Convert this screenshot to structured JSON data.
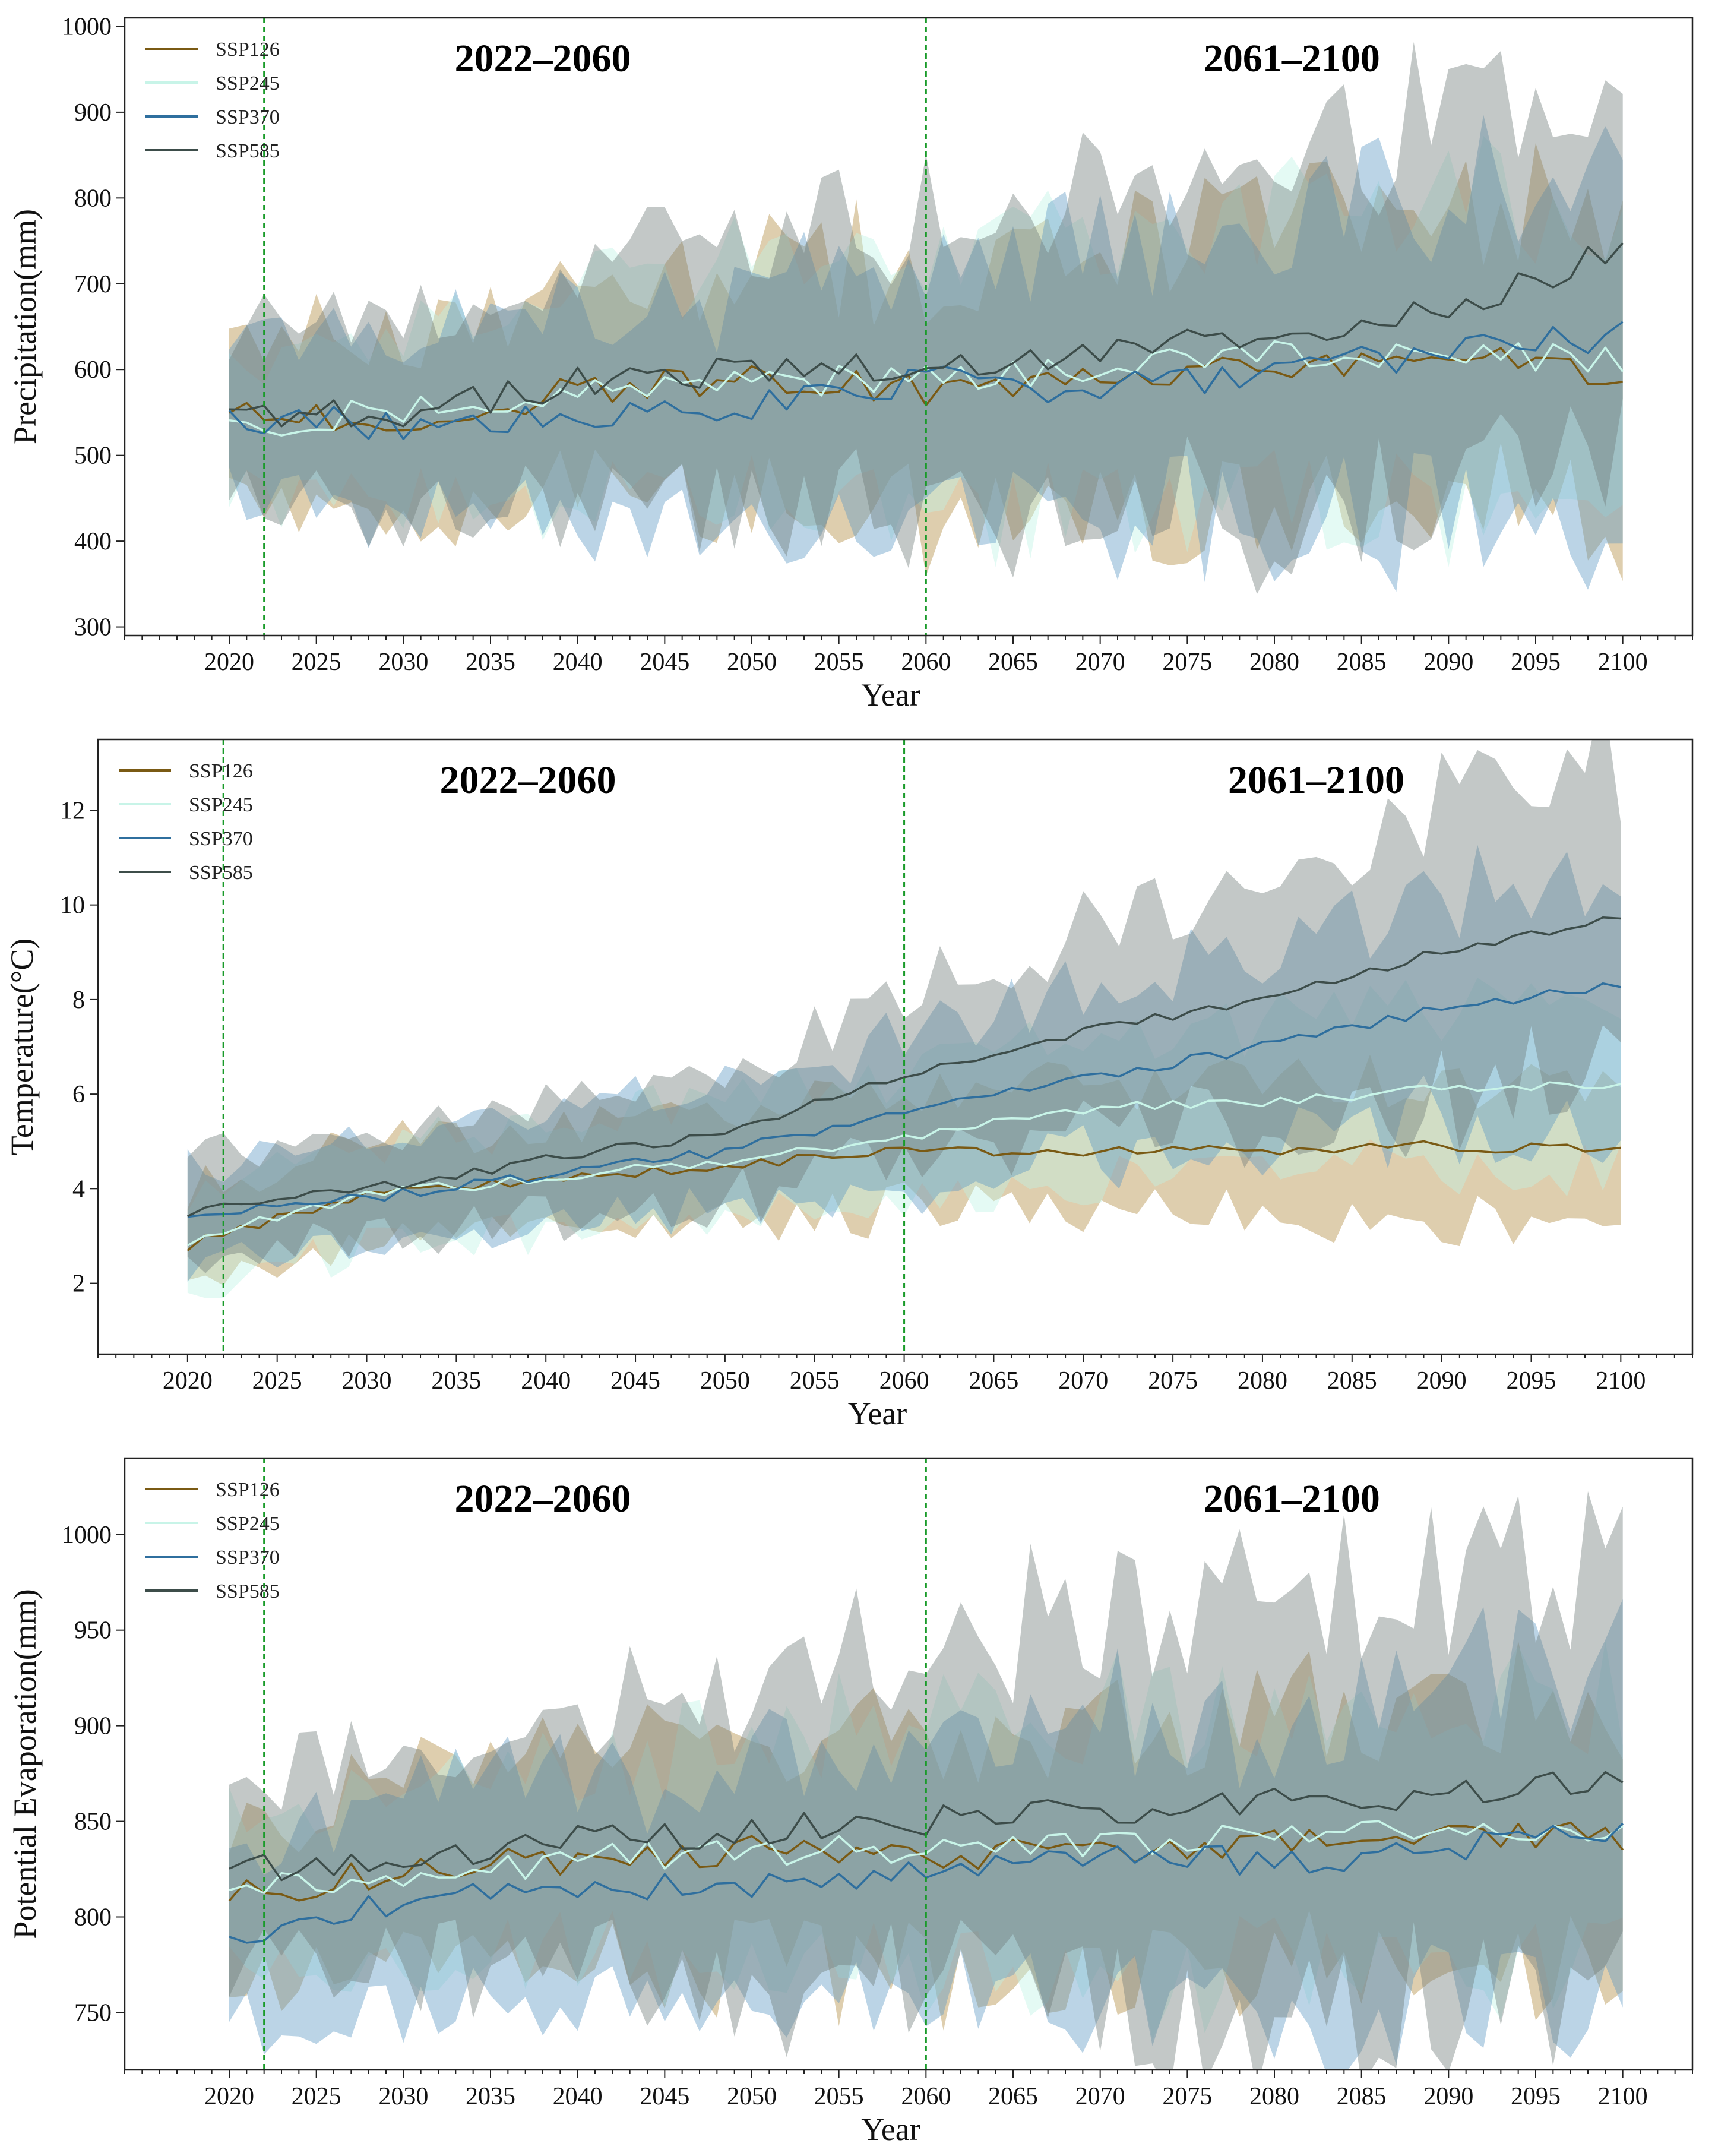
{
  "figure_title": "",
  "series_colors": {
    "SSP126": "#7a5a14",
    "SSP245": "#c8f4e8",
    "SSP370": "#2f6f9e",
    "SSP585": "#3d4d4a"
  },
  "band_colors": {
    "SSP126": "#b08a3e",
    "SSP245": "#bff2e4",
    "SSP370": "#5e98c4",
    "SSP585": "#6f7d7a"
  },
  "divider_color": "#1a9b2a",
  "chart_data": [
    {
      "type": "line",
      "title": "",
      "xlabel": "Year",
      "ylabel": "Precipitation(mm)",
      "xlim": [
        2014,
        2104
      ],
      "ylim": [
        290,
        1010
      ],
      "xticks": [
        2020,
        2025,
        2030,
        2035,
        2040,
        2045,
        2050,
        2055,
        2060,
        2065,
        2070,
        2075,
        2080,
        2085,
        2090,
        2095,
        2100
      ],
      "yticks": [
        300,
        400,
        500,
        600,
        700,
        800,
        900,
        1000
      ],
      "dividers": [
        2022,
        2060
      ],
      "period_labels": [
        {
          "text": "2022–2060",
          "year": 2038
        },
        {
          "text": "2061–2100",
          "year": 2081
        }
      ],
      "legend": [
        "SSP126",
        "SSP245",
        "SSP370",
        "SSP585"
      ],
      "legend_position": "upper-left",
      "x": [
        2020,
        2030,
        2040,
        2050,
        2060,
        2070,
        2080,
        2090,
        2100
      ],
      "series": [
        {
          "name": "SSP126",
          "values": [
            545,
            545,
            575,
            590,
            575,
            590,
            605,
            615,
            590
          ],
          "band": [
            85,
            95,
            115,
            130,
            140,
            155,
            160,
            170,
            170
          ]
        },
        {
          "name": "SSP245",
          "values": [
            535,
            555,
            570,
            585,
            590,
            600,
            615,
            620,
            610
          ],
          "band": [
            80,
            90,
            110,
            125,
            140,
            150,
            160,
            165,
            170
          ]
        },
        {
          "name": "SSP370",
          "values": [
            545,
            535,
            550,
            555,
            590,
            575,
            600,
            620,
            640
          ],
          "band": [
            90,
            100,
            115,
            130,
            145,
            160,
            170,
            180,
            190
          ]
        },
        {
          "name": "SSP585",
          "values": [
            545,
            550,
            585,
            600,
            600,
            620,
            640,
            670,
            740
          ],
          "band": [
            95,
            110,
            130,
            150,
            170,
            190,
            200,
            210,
            200
          ]
        }
      ]
    },
    {
      "type": "line",
      "title": "",
      "xlabel": "Year",
      "ylabel": "Temperature(°C)",
      "xlim": [
        2015,
        2104
      ],
      "ylim": [
        0.5,
        13.5
      ],
      "xticks": [
        2020,
        2025,
        2030,
        2035,
        2040,
        2045,
        2050,
        2055,
        2060,
        2065,
        2070,
        2075,
        2080,
        2085,
        2090,
        2095,
        2100
      ],
      "yticks": [
        2,
        4,
        6,
        8,
        10,
        12
      ],
      "dividers": [
        2022,
        2060
      ],
      "period_labels": [
        {
          "text": "2022–2060",
          "year": 2039
        },
        {
          "text": "2061–2100",
          "year": 2083
        }
      ],
      "legend": [
        "SSP126",
        "SSP245",
        "SSP370",
        "SSP585"
      ],
      "legend_position": "upper-left",
      "x": [
        2020,
        2030,
        2040,
        2050,
        2060,
        2070,
        2080,
        2090,
        2100
      ],
      "series": [
        {
          "name": "SSP126",
          "values": [
            2.8,
            3.9,
            4.2,
            4.5,
            4.8,
            4.8,
            4.8,
            4.9,
            4.8
          ],
          "band": [
            1.0,
            1.0,
            1.0,
            1.1,
            1.2,
            1.3,
            1.3,
            1.4,
            1.3
          ]
        },
        {
          "name": "SSP245",
          "values": [
            2.9,
            3.9,
            4.2,
            4.6,
            5.1,
            5.7,
            5.8,
            6.1,
            6.2
          ],
          "band": [
            1.0,
            1.0,
            1.1,
            1.2,
            1.3,
            1.4,
            1.5,
            1.6,
            1.6
          ]
        },
        {
          "name": "SSP370",
          "values": [
            3.5,
            3.8,
            4.3,
            4.8,
            5.6,
            6.3,
            7.0,
            7.8,
            8.3
          ],
          "band": [
            1.0,
            1.0,
            1.1,
            1.3,
            1.5,
            1.7,
            2.0,
            2.3,
            2.6
          ]
        },
        {
          "name": "SSP585",
          "values": [
            3.5,
            4.0,
            4.6,
            5.2,
            6.4,
            7.3,
            8.0,
            9.0,
            9.8
          ],
          "band": [
            1.0,
            1.1,
            1.2,
            1.4,
            1.6,
            2.0,
            2.4,
            2.9,
            3.3
          ]
        }
      ]
    },
    {
      "type": "line",
      "title": "",
      "xlabel": "Year",
      "ylabel": "Potential Evaporation(mm)",
      "xlim": [
        2014,
        2104
      ],
      "ylim": [
        720,
        1040
      ],
      "xticks": [
        2020,
        2025,
        2030,
        2035,
        2040,
        2045,
        2050,
        2055,
        2060,
        2065,
        2070,
        2075,
        2080,
        2085,
        2090,
        2095,
        2100
      ],
      "yticks": [
        750,
        800,
        850,
        900,
        950,
        1000
      ],
      "dividers": [
        2022,
        2060
      ],
      "period_labels": [
        {
          "text": "2022–2060",
          "year": 2038
        },
        {
          "text": "2061–2100",
          "year": 2081
        }
      ],
      "legend": [
        "SSP126",
        "SSP245",
        "SSP370",
        "SSP585"
      ],
      "legend_position": "upper-left",
      "x": [
        2020,
        2030,
        2040,
        2050,
        2060,
        2070,
        2080,
        2090,
        2100
      ],
      "series": [
        {
          "name": "SSP126",
          "values": [
            810,
            825,
            830,
            835,
            830,
            835,
            840,
            845,
            840
          ],
          "band": [
            40,
            45,
            50,
            55,
            60,
            60,
            65,
            65,
            65
          ]
        },
        {
          "name": "SSP245",
          "values": [
            815,
            820,
            830,
            835,
            835,
            840,
            840,
            845,
            840
          ],
          "band": [
            40,
            45,
            50,
            55,
            60,
            65,
            65,
            70,
            70
          ]
        },
        {
          "name": "SSP370",
          "values": [
            790,
            810,
            815,
            815,
            825,
            830,
            830,
            835,
            845
          ],
          "band": [
            40,
            50,
            55,
            60,
            65,
            70,
            75,
            80,
            85
          ]
        },
        {
          "name": "SSP585",
          "values": [
            825,
            830,
            840,
            845,
            850,
            855,
            860,
            865,
            870
          ],
          "band": [
            45,
            55,
            65,
            75,
            85,
            95,
            105,
            110,
            115
          ]
        }
      ]
    }
  ]
}
